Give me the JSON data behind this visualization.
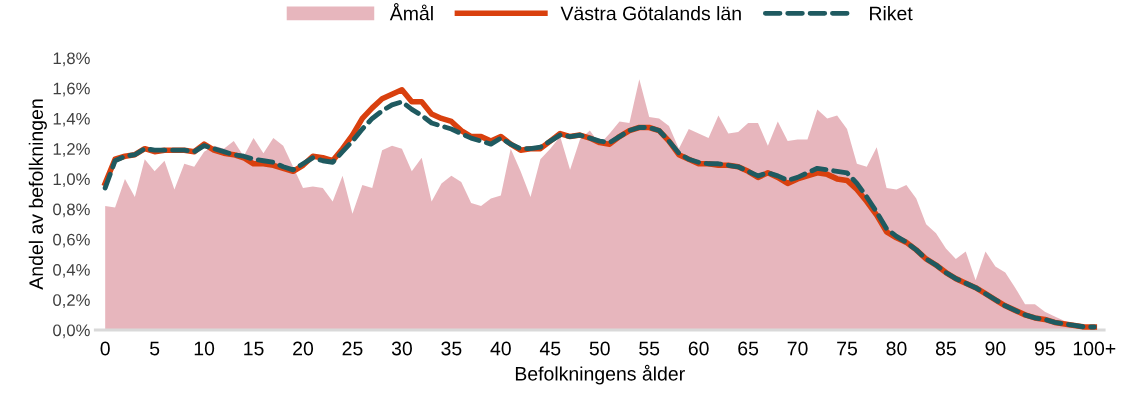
{
  "chart_data": {
    "type": "line",
    "xlabel": "Befolkningens ålder",
    "ylabel": "Andel av befolkningen",
    "x": [
      0,
      1,
      2,
      3,
      4,
      5,
      6,
      7,
      8,
      9,
      10,
      11,
      12,
      13,
      14,
      15,
      16,
      17,
      18,
      19,
      20,
      21,
      22,
      23,
      24,
      25,
      26,
      27,
      28,
      29,
      30,
      31,
      32,
      33,
      34,
      35,
      36,
      37,
      38,
      39,
      40,
      41,
      42,
      43,
      44,
      45,
      46,
      47,
      48,
      49,
      50,
      51,
      52,
      53,
      54,
      55,
      56,
      57,
      58,
      59,
      60,
      61,
      62,
      63,
      64,
      65,
      66,
      67,
      68,
      69,
      70,
      71,
      72,
      73,
      74,
      75,
      76,
      77,
      78,
      79,
      80,
      81,
      82,
      83,
      84,
      85,
      86,
      87,
      88,
      89,
      90,
      91,
      92,
      93,
      94,
      95,
      96,
      97,
      98,
      99,
      100
    ],
    "series": [
      {
        "name": "Åmål",
        "type": "area",
        "color": "#e3a9b1",
        "values": [
          0.82,
          0.81,
          1.0,
          0.88,
          1.13,
          1.05,
          1.12,
          0.93,
          1.1,
          1.08,
          1.18,
          1.22,
          1.2,
          1.25,
          1.15,
          1.27,
          1.17,
          1.27,
          1.22,
          1.08,
          0.94,
          0.95,
          0.94,
          0.85,
          1.02,
          0.77,
          0.96,
          0.94,
          1.19,
          1.22,
          1.2,
          1.05,
          1.14,
          0.85,
          0.97,
          1.02,
          0.98,
          0.84,
          0.82,
          0.87,
          0.89,
          1.2,
          1.05,
          0.88,
          1.13,
          1.2,
          1.28,
          1.06,
          1.26,
          1.32,
          1.23,
          1.3,
          1.38,
          1.37,
          1.66,
          1.41,
          1.4,
          1.35,
          1.2,
          1.33,
          1.3,
          1.27,
          1.42,
          1.3,
          1.31,
          1.37,
          1.37,
          1.22,
          1.38,
          1.25,
          1.26,
          1.26,
          1.46,
          1.4,
          1.42,
          1.33,
          1.1,
          1.08,
          1.21,
          0.94,
          0.93,
          0.96,
          0.87,
          0.7,
          0.64,
          0.54,
          0.47,
          0.52,
          0.33,
          0.52,
          0.42,
          0.38,
          0.28,
          0.17,
          0.17,
          0.12,
          0.09,
          0.06,
          0.04,
          0.03,
          0.02
        ]
      },
      {
        "name": "Västra Götalands län",
        "line_style": "solid",
        "color": "#d9400e",
        "values": [
          0.97,
          1.13,
          1.15,
          1.16,
          1.2,
          1.18,
          1.19,
          1.19,
          1.19,
          1.18,
          1.23,
          1.19,
          1.17,
          1.16,
          1.14,
          1.1,
          1.1,
          1.09,
          1.07,
          1.05,
          1.09,
          1.15,
          1.14,
          1.12,
          1.2,
          1.29,
          1.4,
          1.47,
          1.53,
          1.56,
          1.59,
          1.51,
          1.51,
          1.43,
          1.4,
          1.38,
          1.32,
          1.28,
          1.28,
          1.25,
          1.28,
          1.23,
          1.19,
          1.2,
          1.2,
          1.25,
          1.3,
          1.28,
          1.29,
          1.27,
          1.24,
          1.23,
          1.28,
          1.32,
          1.34,
          1.34,
          1.32,
          1.25,
          1.16,
          1.13,
          1.1,
          1.1,
          1.09,
          1.09,
          1.08,
          1.05,
          1.01,
          1.04,
          1.01,
          0.97,
          1.0,
          1.02,
          1.04,
          1.03,
          1.0,
          0.99,
          0.93,
          0.85,
          0.76,
          0.65,
          0.61,
          0.58,
          0.53,
          0.47,
          0.43,
          0.38,
          0.34,
          0.31,
          0.28,
          0.24,
          0.2,
          0.16,
          0.13,
          0.1,
          0.08,
          0.07,
          0.05,
          0.04,
          0.03,
          0.02,
          0.02
        ]
      },
      {
        "name": "Riket",
        "line_style": "dashed",
        "color": "#1f5a60",
        "values": [
          0.94,
          1.12,
          1.15,
          1.16,
          1.2,
          1.19,
          1.19,
          1.19,
          1.19,
          1.18,
          1.22,
          1.2,
          1.18,
          1.16,
          1.15,
          1.13,
          1.12,
          1.11,
          1.08,
          1.06,
          1.1,
          1.14,
          1.12,
          1.11,
          1.18,
          1.25,
          1.33,
          1.4,
          1.45,
          1.49,
          1.51,
          1.46,
          1.42,
          1.37,
          1.35,
          1.33,
          1.3,
          1.27,
          1.25,
          1.23,
          1.27,
          1.23,
          1.2,
          1.2,
          1.21,
          1.25,
          1.29,
          1.28,
          1.29,
          1.27,
          1.25,
          1.24,
          1.28,
          1.32,
          1.34,
          1.34,
          1.32,
          1.25,
          1.17,
          1.13,
          1.11,
          1.1,
          1.1,
          1.09,
          1.08,
          1.05,
          1.02,
          1.04,
          1.02,
          0.99,
          1.01,
          1.04,
          1.07,
          1.06,
          1.05,
          1.04,
          0.97,
          0.88,
          0.78,
          0.67,
          0.62,
          0.58,
          0.53,
          0.47,
          0.43,
          0.38,
          0.34,
          0.31,
          0.28,
          0.24,
          0.2,
          0.16,
          0.13,
          0.1,
          0.08,
          0.07,
          0.05,
          0.04,
          0.03,
          0.02,
          0.02
        ]
      }
    ],
    "xlim": [
      -1,
      101
    ],
    "xticks": [
      0,
      5,
      10,
      15,
      20,
      25,
      30,
      35,
      40,
      45,
      50,
      55,
      60,
      65,
      70,
      75,
      80,
      85,
      90,
      95,
      {
        "value": 100,
        "label": "100+"
      }
    ],
    "ylim": [
      0,
      1.8
    ],
    "yticks": [
      {
        "value": 0,
        "label": "0,0%"
      },
      {
        "value": 0.2,
        "label": "0,2%"
      },
      {
        "value": 0.4,
        "label": "0,4%"
      },
      {
        "value": 0.6,
        "label": "0,6%"
      },
      {
        "value": 0.8,
        "label": "0,8%"
      },
      {
        "value": 1.0,
        "label": "1,0%"
      },
      {
        "value": 1.2,
        "label": "1,2%"
      },
      {
        "value": 1.4,
        "label": "1,4%"
      },
      {
        "value": 1.6,
        "label": "1,6%"
      },
      {
        "value": 1.8,
        "label": "1,8%"
      }
    ],
    "grid": false,
    "legend": "top"
  }
}
